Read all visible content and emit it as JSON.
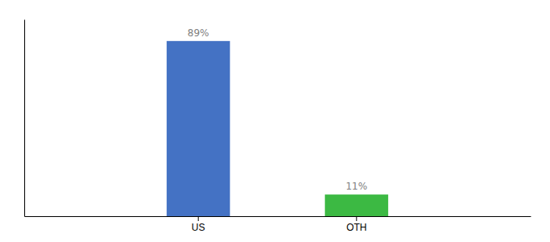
{
  "chart_data": {
    "type": "bar",
    "categories": [
      "US",
      "OTH"
    ],
    "values": [
      89,
      11
    ],
    "value_labels": [
      "89%",
      "11%"
    ],
    "colors": [
      "#4472C4",
      "#3CB943"
    ],
    "ylim": [
      0,
      100
    ],
    "data_labels": true,
    "tick_labels": "x"
  }
}
